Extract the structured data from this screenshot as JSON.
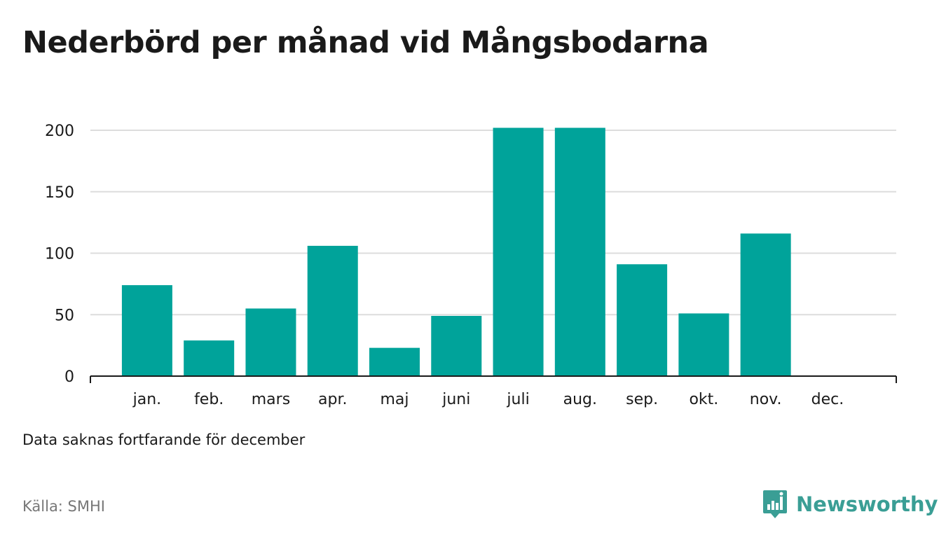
{
  "title": "Nederbörd per månad vid Mångsbodarna",
  "note": "Data saknas fortfarande för december",
  "source": "Källa: SMHI",
  "brand": {
    "name": "Newsworthy",
    "icon": "newsworthy-logo-icon",
    "color": "#3a9e95"
  },
  "colors": {
    "bar": "#00a39a",
    "grid": "#dddddd",
    "axis": "#1a1a1a"
  },
  "chart_data": {
    "type": "bar",
    "title": "Nederbörd per månad vid Mångsbodarna",
    "xlabel": "",
    "ylabel": "",
    "categories": [
      "jan.",
      "feb.",
      "mars",
      "apr.",
      "maj",
      "juni",
      "juli",
      "aug.",
      "sep.",
      "okt.",
      "nov.",
      "dec."
    ],
    "values": [
      74,
      29,
      55,
      106,
      23,
      49,
      202,
      202,
      91,
      51,
      116,
      null
    ],
    "ylim": [
      0,
      200
    ],
    "yticks": [
      0,
      50,
      100,
      150,
      200
    ],
    "grid": true,
    "legend": "none"
  }
}
